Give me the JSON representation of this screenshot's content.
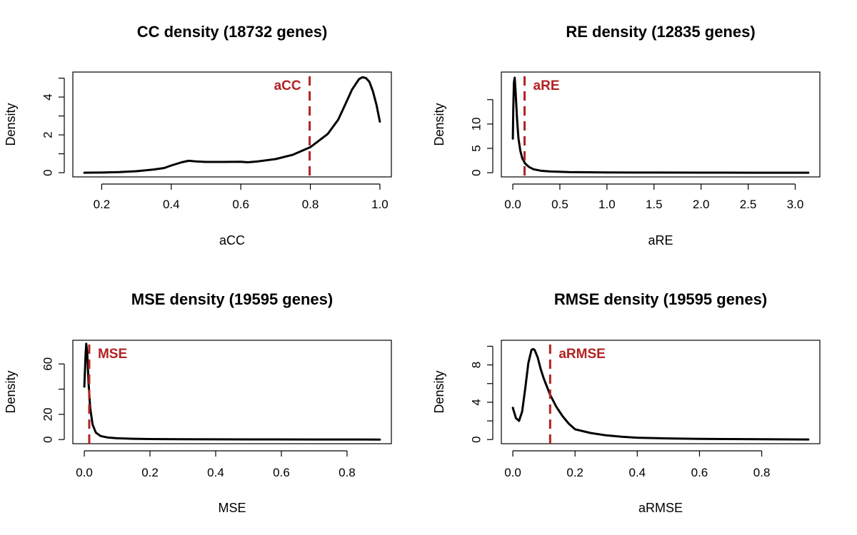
{
  "chart_data": [
    {
      "type": "line",
      "title": "CC density (18732 genes)",
      "xlabel": "aCC",
      "ylabel": "Density",
      "xlim": [
        0.15,
        1.0
      ],
      "ylim": [
        0,
        5.1
      ],
      "x_ticks": [
        {
          "value": 0.2,
          "label": "0.2"
        },
        {
          "value": 0.4,
          "label": "0.4"
        },
        {
          "value": 0.6,
          "label": "0.6"
        },
        {
          "value": 0.8,
          "label": "0.8"
        },
        {
          "value": 1.0,
          "label": "1.0"
        }
      ],
      "y_ticks": [
        {
          "value": 0,
          "label": "0"
        },
        {
          "value": 1,
          "label": ""
        },
        {
          "value": 2,
          "label": "2"
        },
        {
          "value": 3,
          "label": ""
        },
        {
          "value": 4,
          "label": "4"
        },
        {
          "value": 5,
          "label": ""
        }
      ],
      "reference_line": {
        "x": 0.798,
        "label": "aCC",
        "label_side": "left",
        "color": "#b22222"
      },
      "x": [
        0.15,
        0.2,
        0.25,
        0.3,
        0.35,
        0.38,
        0.4,
        0.43,
        0.45,
        0.47,
        0.5,
        0.55,
        0.6,
        0.62,
        0.65,
        0.7,
        0.75,
        0.8,
        0.85,
        0.88,
        0.9,
        0.92,
        0.94,
        0.95,
        0.96,
        0.97,
        0.98,
        0.99,
        1.0
      ],
      "y": [
        0.0,
        0.01,
        0.03,
        0.08,
        0.17,
        0.25,
        0.38,
        0.55,
        0.63,
        0.6,
        0.57,
        0.57,
        0.58,
        0.55,
        0.6,
        0.72,
        0.95,
        1.35,
        2.05,
        2.8,
        3.6,
        4.4,
        4.95,
        5.05,
        5.0,
        4.8,
        4.3,
        3.6,
        2.7
      ],
      "grid": false
    },
    {
      "type": "line",
      "title": "RE density (12835 genes)",
      "xlabel": "aRE",
      "ylabel": "Density",
      "xlim": [
        0,
        3.14
      ],
      "ylim": [
        0,
        19.8
      ],
      "x_ticks": [
        {
          "value": 0.0,
          "label": "0.0"
        },
        {
          "value": 0.5,
          "label": "0.5"
        },
        {
          "value": 1.0,
          "label": "1.0"
        },
        {
          "value": 1.5,
          "label": "1.5"
        },
        {
          "value": 2.0,
          "label": "2.0"
        },
        {
          "value": 2.5,
          "label": "2.5"
        },
        {
          "value": 3.0,
          "label": "3.0"
        }
      ],
      "y_ticks": [
        {
          "value": 0,
          "label": "0"
        },
        {
          "value": 5,
          "label": "5"
        },
        {
          "value": 10,
          "label": "10"
        },
        {
          "value": 15,
          "label": ""
        }
      ],
      "reference_line": {
        "x": 0.125,
        "label": "aRE",
        "label_side": "right",
        "color": "#b22222"
      },
      "x": [
        0.0,
        0.005,
        0.012,
        0.02,
        0.03,
        0.045,
        0.06,
        0.08,
        0.1,
        0.13,
        0.17,
        0.22,
        0.3,
        0.4,
        0.6,
        1.0,
        1.5,
        2.0,
        2.5,
        3.14
      ],
      "y": [
        7.0,
        13.0,
        18.5,
        19.5,
        16.5,
        11.0,
        7.0,
        4.5,
        3.0,
        1.9,
        1.2,
        0.7,
        0.4,
        0.25,
        0.12,
        0.06,
        0.03,
        0.02,
        0.01,
        0.0
      ],
      "grid": false
    },
    {
      "type": "line",
      "title": "MSE density (19595 genes)",
      "xlabel": "MSE",
      "ylabel": "Density",
      "xlim": [
        0,
        0.9
      ],
      "ylim": [
        0,
        75.5
      ],
      "x_ticks": [
        {
          "value": 0.0,
          "label": "0.0"
        },
        {
          "value": 0.2,
          "label": "0.2"
        },
        {
          "value": 0.4,
          "label": "0.4"
        },
        {
          "value": 0.6,
          "label": "0.6"
        },
        {
          "value": 0.8,
          "label": "0.8"
        }
      ],
      "y_ticks": [
        {
          "value": 0,
          "label": "0"
        },
        {
          "value": 20,
          "label": "20"
        },
        {
          "value": 40,
          "label": ""
        },
        {
          "value": 60,
          "label": "60"
        }
      ],
      "reference_line": {
        "x": 0.015,
        "label": "MSE",
        "label_side": "right",
        "color": "#b22222"
      },
      "x": [
        0.0,
        0.002,
        0.004,
        0.006,
        0.009,
        0.013,
        0.018,
        0.025,
        0.035,
        0.05,
        0.07,
        0.1,
        0.15,
        0.2,
        0.3,
        0.5,
        0.7,
        0.9
      ],
      "y": [
        42,
        55,
        68,
        76,
        68,
        45,
        25,
        12,
        5.5,
        2.8,
        1.7,
        1.0,
        0.6,
        0.4,
        0.25,
        0.1,
        0.05,
        0.02
      ],
      "grid": false
    },
    {
      "type": "line",
      "title": "RMSE density (19595 genes)",
      "xlabel": "aRMSE",
      "ylabel": "Density",
      "xlim": [
        0,
        0.95
      ],
      "ylim": [
        0,
        10.2
      ],
      "x_ticks": [
        {
          "value": 0.0,
          "label": "0.0"
        },
        {
          "value": 0.2,
          "label": "0.2"
        },
        {
          "value": 0.4,
          "label": "0.4"
        },
        {
          "value": 0.6,
          "label": "0.6"
        },
        {
          "value": 0.8,
          "label": "0.8"
        }
      ],
      "y_ticks": [
        {
          "value": 0,
          "label": "0"
        },
        {
          "value": 2,
          "label": ""
        },
        {
          "value": 4,
          "label": "4"
        },
        {
          "value": 6,
          "label": ""
        },
        {
          "value": 8,
          "label": "8"
        },
        {
          "value": 10,
          "label": ""
        }
      ],
      "reference_line": {
        "x": 0.12,
        "label": "aRMSE",
        "label_side": "right",
        "color": "#b22222"
      },
      "x": [
        0.0,
        0.01,
        0.02,
        0.03,
        0.04,
        0.05,
        0.06,
        0.065,
        0.07,
        0.08,
        0.09,
        0.1,
        0.12,
        0.14,
        0.16,
        0.18,
        0.2,
        0.25,
        0.3,
        0.35,
        0.4,
        0.5,
        0.6,
        0.7,
        0.8,
        0.95
      ],
      "y": [
        3.4,
        2.3,
        2.0,
        3.0,
        5.5,
        8.2,
        9.6,
        9.7,
        9.6,
        8.8,
        7.5,
        6.5,
        4.8,
        3.5,
        2.5,
        1.7,
        1.1,
        0.7,
        0.45,
        0.3,
        0.2,
        0.12,
        0.08,
        0.05,
        0.03,
        0.01
      ],
      "grid": false
    }
  ]
}
